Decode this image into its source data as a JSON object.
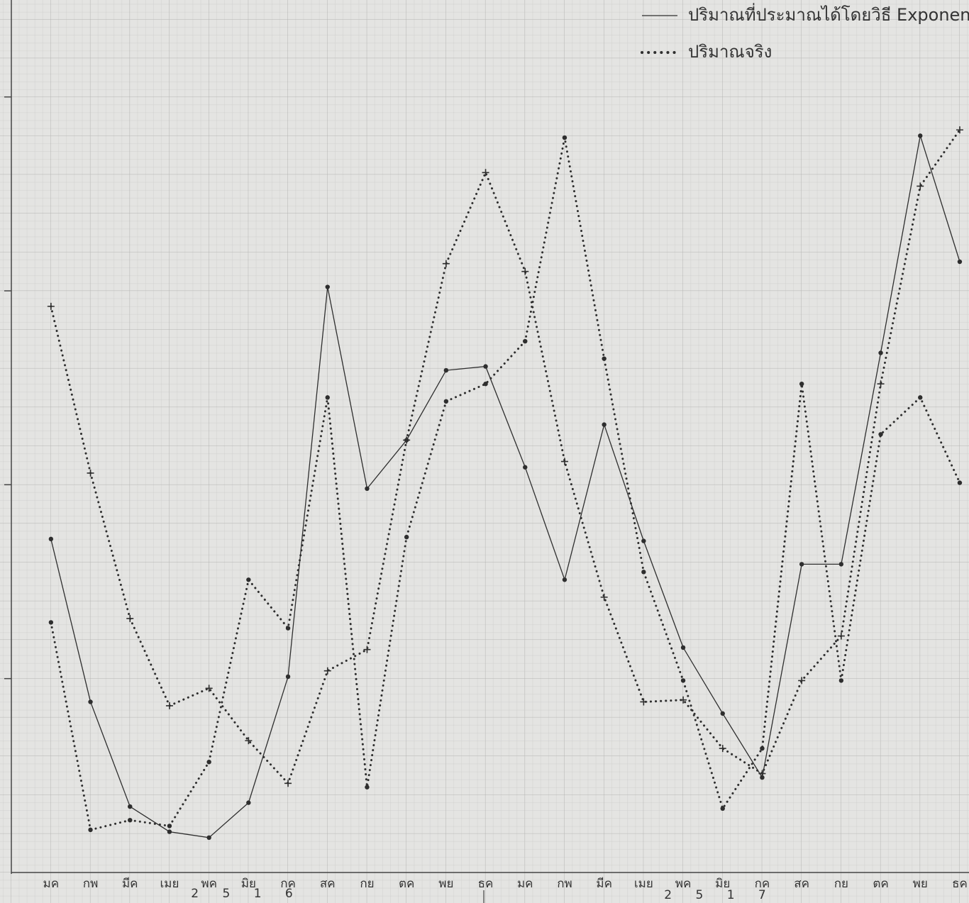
{
  "chart_data": {
    "type": "line",
    "categories": [
      "มค",
      "กพ",
      "มีค",
      "เมย",
      "พค",
      "มิย",
      "กค",
      "สค",
      "กย",
      "ตค",
      "พย",
      "ธค",
      "มค",
      "กพ",
      "มีค",
      "เมย",
      "พค",
      "มิย",
      "กค",
      "สค",
      "กย",
      "ตค",
      "พย",
      "ธค"
    ],
    "series": [
      {
        "name": "ปริมาณที่ประมาณได้โดยวิธี Exponential",
        "color": "#2e2e2e",
        "style": "solid",
        "marker": "dot",
        "values": [
          1.72,
          0.88,
          0.34,
          0.21,
          0.18,
          0.36,
          1.01,
          3.02,
          1.98,
          2.23,
          2.59,
          2.61,
          2.09,
          1.51,
          2.31,
          1.71,
          1.16,
          0.82,
          0.49,
          1.59,
          1.59,
          2.68,
          3.8,
          3.15
        ]
      },
      {
        "name": "ปริมาณจริง",
        "color": "#2e2e2e",
        "style": "dotted",
        "marker": "dot",
        "values": [
          1.29,
          0.22,
          0.27,
          0.24,
          0.57,
          1.51,
          1.26,
          2.45,
          0.44,
          1.73,
          2.43,
          2.52,
          2.74,
          3.79,
          2.65,
          1.55,
          0.99,
          0.33,
          0.64,
          2.52,
          0.99,
          2.26,
          2.45,
          2.01
        ]
      },
      {
        "color": "#2e2e2e",
        "style": "dotted",
        "marker": "cross",
        "values": [
          2.92,
          2.06,
          1.31,
          0.86,
          0.95,
          0.68,
          0.46,
          1.04,
          1.15,
          2.23,
          3.14,
          3.61,
          3.1,
          2.12,
          1.42,
          0.88,
          0.89,
          0.64,
          0.51,
          0.99,
          1.22,
          2.52,
          3.54,
          3.83
        ]
      }
    ],
    "ylim": [
      0,
      4.5
    ],
    "yticks": [
      1,
      2,
      3,
      4
    ],
    "annotations": [
      "2 5 1 6",
      "2 5 1 7"
    ],
    "legend": "top-right"
  }
}
